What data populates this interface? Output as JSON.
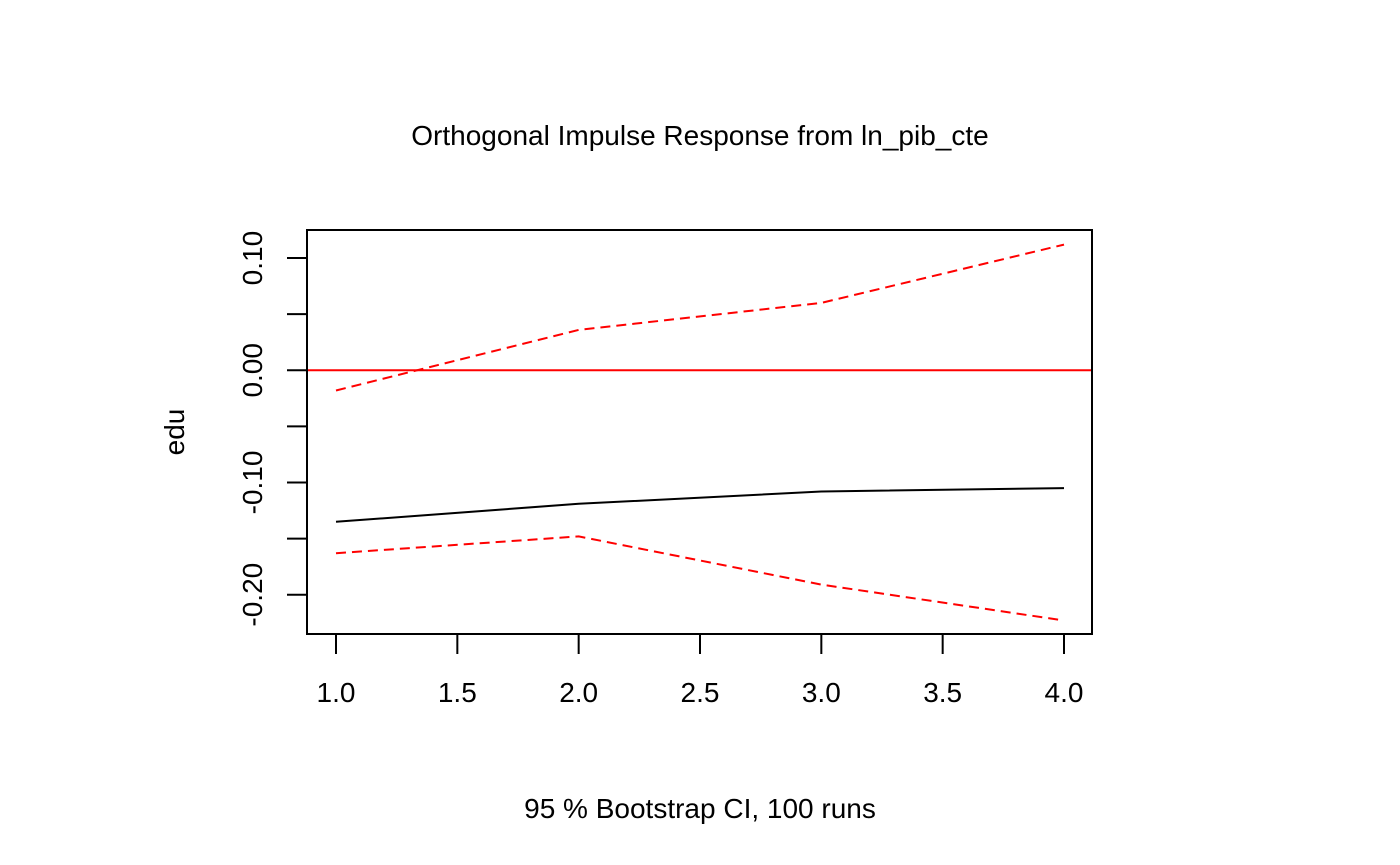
{
  "chart_data": {
    "type": "line",
    "title": "Orthogonal Impulse Response from ln_pib_cte",
    "xlabel": "95 % Bootstrap CI,  100 runs",
    "ylabel": "edu",
    "x": [
      1,
      2,
      3,
      4
    ],
    "xlim": [
      1.0,
      4.0
    ],
    "ylim": [
      -0.235,
      0.125
    ],
    "x_ticks": [
      "1.0",
      "1.5",
      "2.0",
      "2.5",
      "3.0",
      "3.5",
      "4.0"
    ],
    "x_tick_values": [
      1.0,
      1.5,
      2.0,
      2.5,
      3.0,
      3.5,
      4.0
    ],
    "y_ticks": [
      "-0.20",
      "",
      "-0.10",
      "",
      "0.00",
      "",
      "0.10"
    ],
    "y_tick_values": [
      -0.2,
      -0.15,
      -0.1,
      -0.05,
      0.0,
      0.05,
      0.1
    ],
    "grid": false,
    "series": [
      {
        "values": [
          -0.135,
          -0.119,
          -0.108,
          -0.105
        ],
        "color": "#000000",
        "dash": "solid"
      },
      {
        "values": [
          -0.018,
          0.036,
          0.06,
          0.112
        ],
        "color": "#ff0000",
        "dash": "dashed"
      },
      {
        "values": [
          -0.163,
          -0.148,
          -0.191,
          -0.223
        ],
        "color": "#ff0000",
        "dash": "dashed"
      }
    ],
    "hline": {
      "y": 0.0,
      "color": "#ff0000"
    }
  }
}
